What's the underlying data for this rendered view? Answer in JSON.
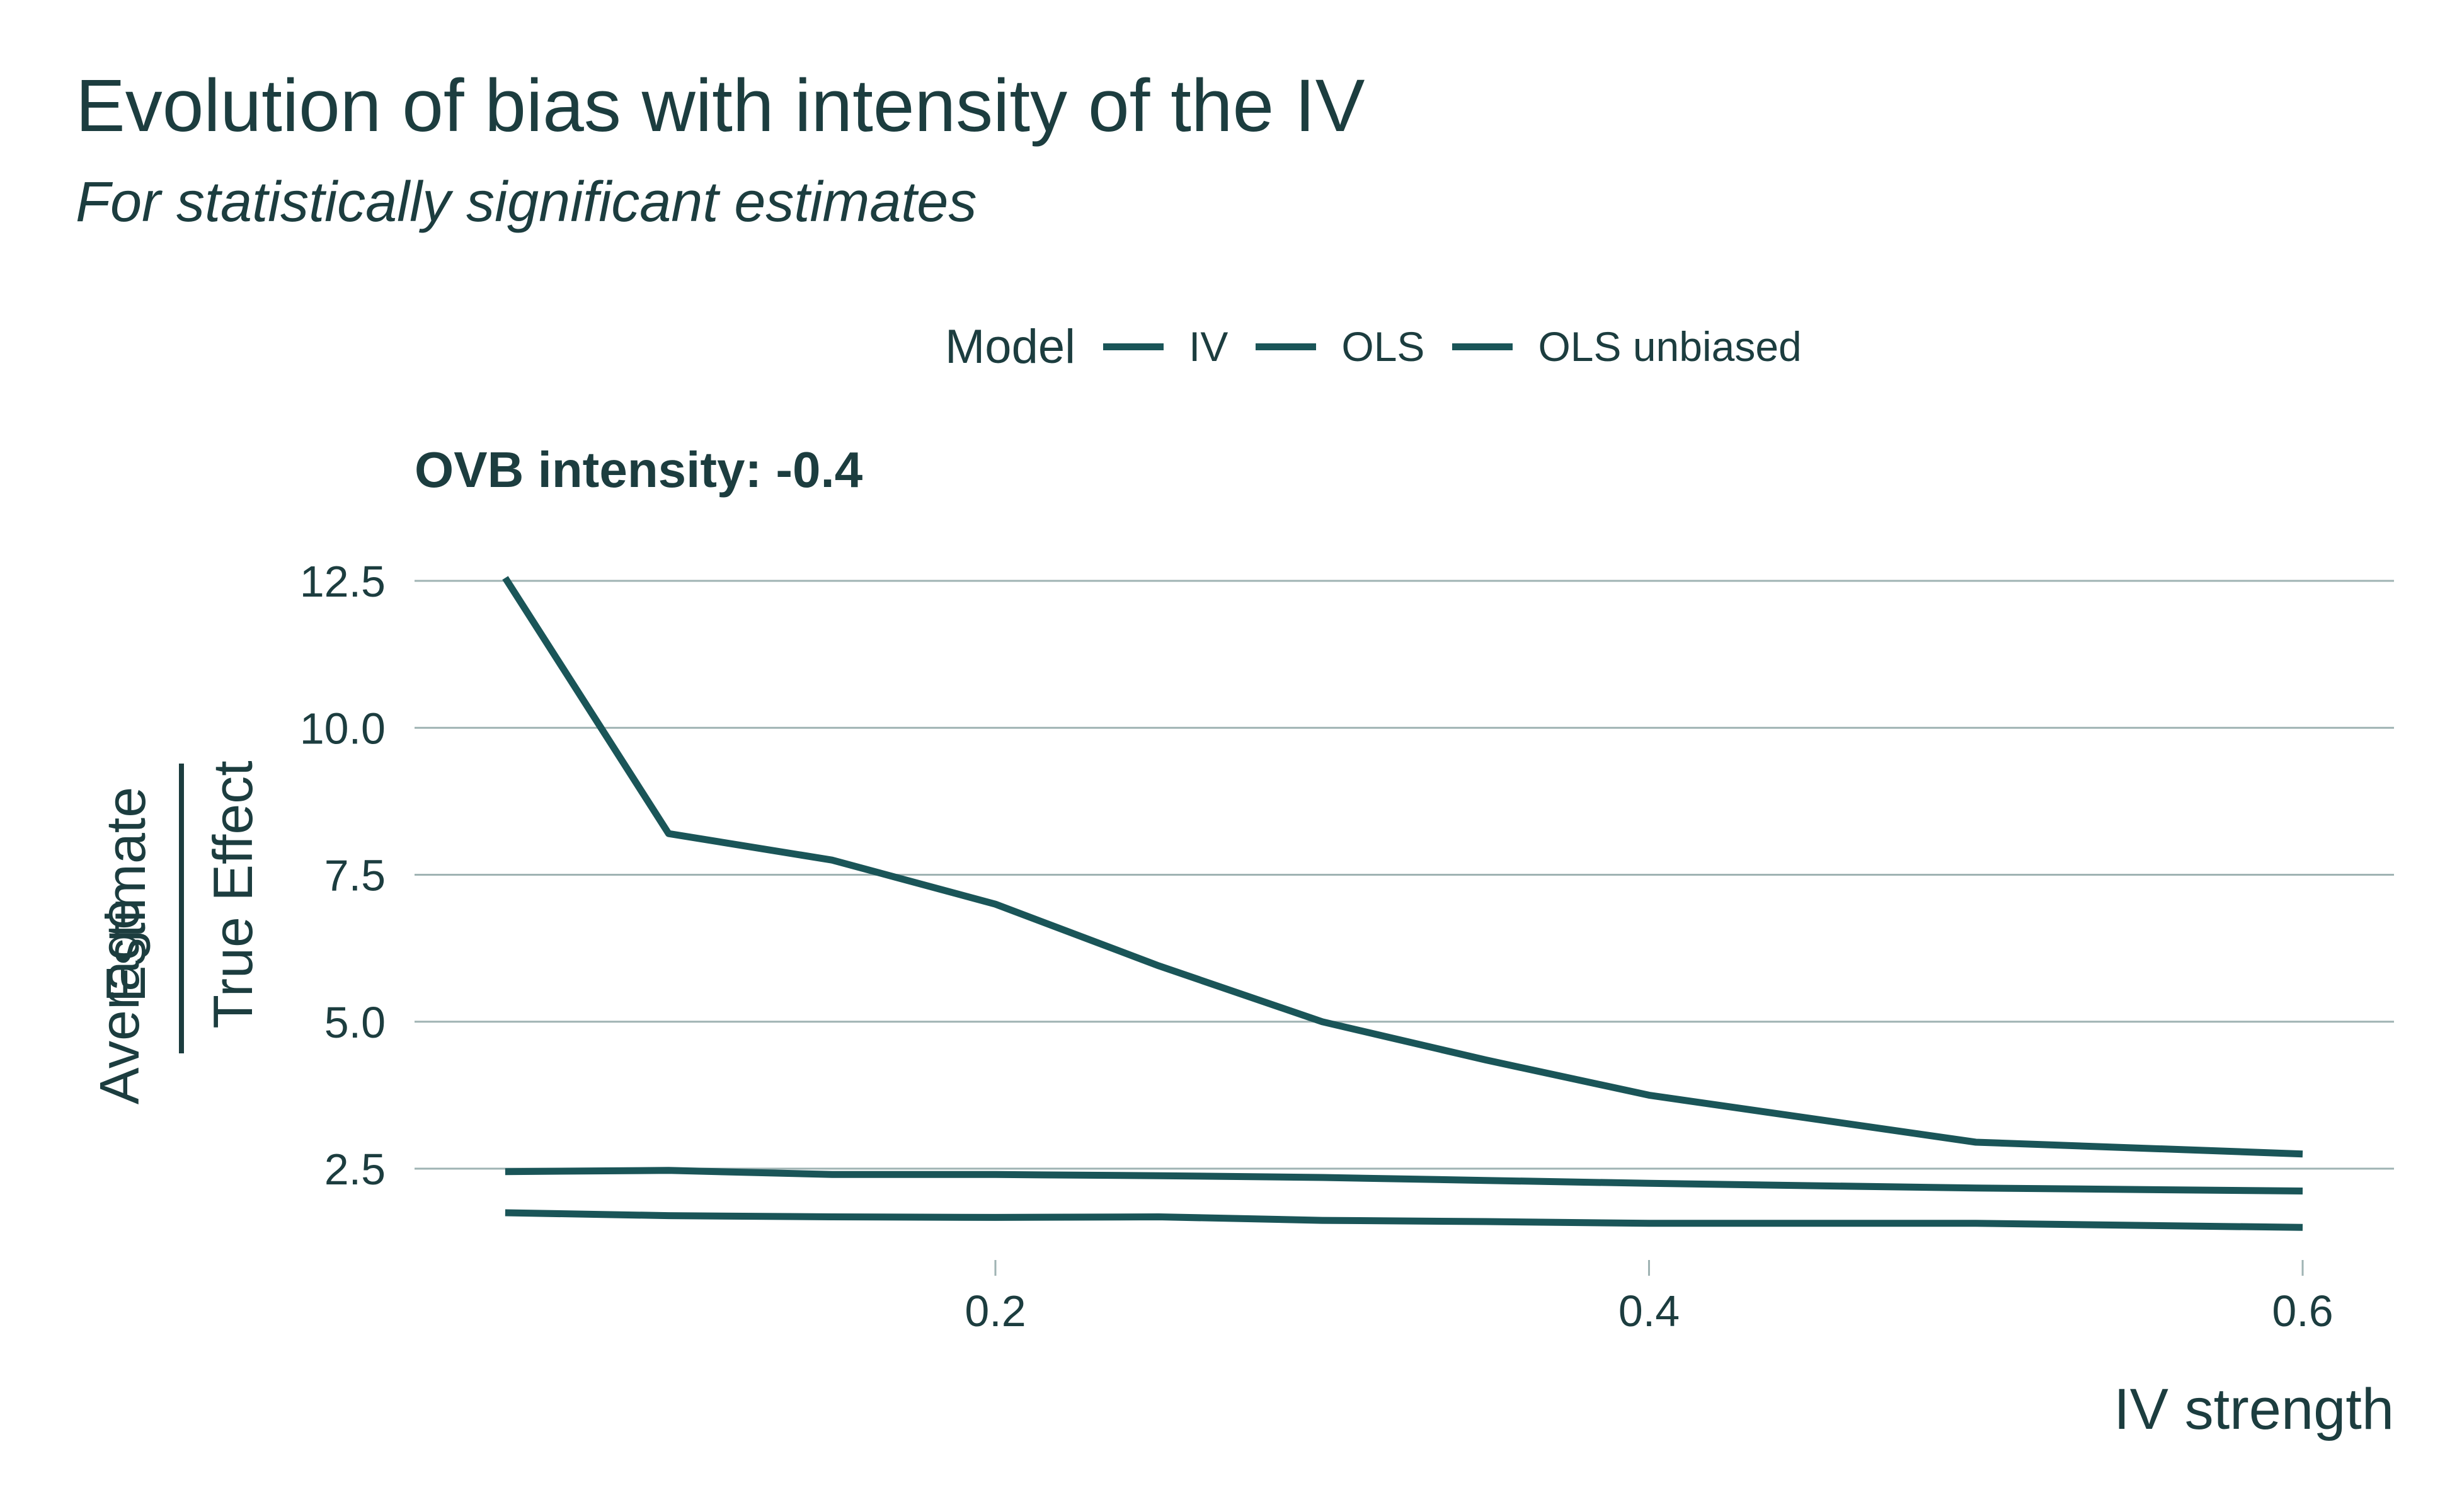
{
  "title": "Evolution of bias with intensity of the IV",
  "subtitle": "For statistically significant estimates",
  "legend": {
    "title": "Model",
    "items": [
      "IV",
      "OLS",
      "OLS unbiased"
    ]
  },
  "facet_title": "OVB intensity: -0.4",
  "y_axis": {
    "prefix": "Average",
    "numerator": "Estimate",
    "denominator": "True Effect"
  },
  "x_axis": {
    "label": "IV strength"
  },
  "colors": {
    "line": "#1a5558",
    "grid": "#9fb3b3",
    "text": "#1c3d3f"
  },
  "chart_data": {
    "type": "line",
    "title": "Evolution of bias with intensity of the IV",
    "subtitle": "For statistically significant estimates",
    "facet": "OVB intensity: -0.4",
    "xlabel": "IV strength",
    "ylabel": "Average Estimate / True Effect",
    "xlim": [
      0.03,
      0.63
    ],
    "ylim": [
      1.0,
      13.0
    ],
    "x_ticks": [
      0.2,
      0.4,
      0.6
    ],
    "x_tick_labels": [
      "0.2",
      "0.4",
      "0.6"
    ],
    "y_ticks": [
      2.5,
      5.0,
      7.5,
      10.0,
      12.5
    ],
    "y_tick_labels": [
      "2.5",
      "5.0",
      "7.5",
      "10.0",
      "12.5"
    ],
    "grid": "horizontal",
    "legend_position": "top",
    "x": [
      0.05,
      0.1,
      0.15,
      0.2,
      0.25,
      0.3,
      0.35,
      0.4,
      0.5,
      0.6
    ],
    "series": [
      {
        "name": "IV",
        "values": [
          12.55,
          8.2,
          7.75,
          7.0,
          5.95,
          5.0,
          4.35,
          3.75,
          2.95,
          2.75
        ]
      },
      {
        "name": "OLS",
        "values": [
          2.45,
          2.47,
          2.4,
          2.4,
          2.38,
          2.35,
          2.3,
          2.25,
          2.17,
          2.12
        ]
      },
      {
        "name": "OLS unbiased",
        "values": [
          1.75,
          1.7,
          1.68,
          1.67,
          1.68,
          1.62,
          1.6,
          1.57,
          1.57,
          1.5
        ]
      }
    ]
  }
}
